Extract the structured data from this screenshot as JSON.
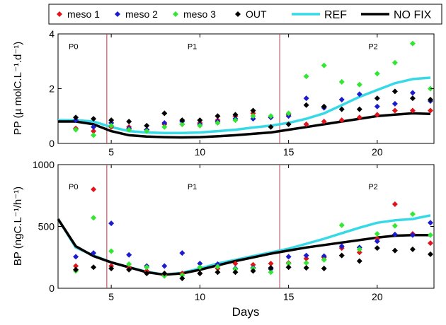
{
  "colors": {
    "meso1": "#e0141c",
    "meso2": "#1c1ccc",
    "meso3": "#33e633",
    "out": "#000000",
    "ref": "#36d9e6",
    "nofix": "#000000",
    "phase_line": "#b03a48"
  },
  "legend": [
    {
      "key": "meso1",
      "label": "meso 1",
      "kind": "diamond"
    },
    {
      "key": "meso2",
      "label": "meso 2",
      "kind": "diamond"
    },
    {
      "key": "meso3",
      "label": "meso 3",
      "kind": "diamond"
    },
    {
      "key": "out",
      "label": "OUT",
      "kind": "diamond"
    },
    {
      "key": "ref",
      "label": "REF",
      "kind": "line"
    },
    {
      "key": "nofix",
      "label": "NO FIX",
      "kind": "line"
    }
  ],
  "chart_data": [
    {
      "type": "scatter",
      "ylabel": "PP (µ molC.L⁻¹.d⁻¹)",
      "xlabel": "",
      "xlim": [
        2,
        23.2
      ],
      "ylim": [
        0,
        4
      ],
      "xticks": [
        5,
        10,
        15,
        20
      ],
      "yticks": [
        0,
        2,
        4
      ],
      "phase_boundaries": [
        4.75,
        14.5
      ],
      "phase_labels": [
        {
          "text": "P0",
          "x": 2.6,
          "y": 3.45
        },
        {
          "text": "P1",
          "x": 9.3,
          "y": 3.45
        },
        {
          "text": "P2",
          "x": 19.5,
          "y": 3.45
        }
      ],
      "series": [
        {
          "name": "meso 1",
          "key": "meso1",
          "kind": "points",
          "x": [
            3,
            4,
            5,
            6,
            7,
            8,
            9,
            10,
            11,
            12,
            13,
            14,
            15,
            16,
            17,
            18,
            19,
            20,
            21,
            22,
            23
          ],
          "y": [
            0.55,
            0.45,
            0.6,
            0.6,
            0.5,
            0.7,
            0.7,
            0.75,
            0.85,
            1.0,
            1.1,
            0.95,
            1.05,
            0.7,
            0.8,
            0.85,
            0.95,
            1.05,
            1.2,
            1.2,
            1.2
          ]
        },
        {
          "name": "meso 2",
          "key": "meso2",
          "kind": "points",
          "x": [
            3,
            4,
            5,
            6,
            7,
            8,
            9,
            10,
            11,
            12,
            13,
            14,
            15,
            16,
            17,
            18,
            19,
            20,
            21,
            22,
            23
          ],
          "y": [
            0.85,
            0.6,
            0.75,
            0.55,
            0.5,
            0.75,
            0.8,
            0.7,
            0.8,
            0.9,
            0.9,
            0.95,
            1.0,
            1.65,
            1.3,
            1.6,
            1.8,
            1.35,
            1.45,
            1.85,
            1.55
          ]
        },
        {
          "name": "meso 3",
          "key": "meso3",
          "kind": "points",
          "x": [
            3,
            4,
            5,
            6,
            7,
            8,
            9,
            10,
            11,
            12,
            13,
            14,
            15,
            16,
            17,
            18,
            19,
            20,
            21,
            22,
            23
          ],
          "y": [
            0.5,
            0.3,
            0.65,
            0.5,
            0.45,
            0.6,
            0.7,
            0.65,
            0.75,
            0.85,
            1.0,
            1.0,
            1.1,
            2.45,
            2.85,
            2.25,
            2.15,
            2.55,
            2.95,
            3.65,
            2.0
          ]
        },
        {
          "name": "OUT",
          "key": "out",
          "kind": "points",
          "x": [
            3,
            4,
            5,
            6,
            7,
            8,
            9,
            10,
            11,
            12,
            13,
            14,
            15,
            16,
            17,
            18,
            19,
            20,
            21,
            22,
            23
          ],
          "y": [
            0.95,
            0.9,
            0.85,
            0.8,
            0.65,
            1.1,
            0.85,
            0.85,
            1.0,
            1.05,
            1.2,
            0.6,
            0.7,
            1.4,
            1.35,
            1.25,
            1.25,
            1.65,
            1.9,
            1.65,
            1.6
          ]
        },
        {
          "name": "REF",
          "key": "ref",
          "kind": "line",
          "x": [
            2,
            3,
            4,
            5,
            6,
            7,
            8,
            9,
            10,
            11,
            12,
            13,
            14,
            15,
            16,
            17,
            18,
            19,
            20,
            21,
            22,
            23
          ],
          "y": [
            0.85,
            0.85,
            0.8,
            0.6,
            0.45,
            0.4,
            0.38,
            0.38,
            0.4,
            0.45,
            0.5,
            0.58,
            0.65,
            0.75,
            0.9,
            1.1,
            1.4,
            1.7,
            1.95,
            2.2,
            2.35,
            2.4
          ]
        },
        {
          "name": "NO FIX",
          "key": "nofix",
          "kind": "line",
          "x": [
            2,
            3,
            4,
            5,
            6,
            7,
            8,
            9,
            10,
            11,
            12,
            13,
            14,
            15,
            16,
            17,
            18,
            19,
            20,
            21,
            22,
            23
          ],
          "y": [
            0.8,
            0.8,
            0.7,
            0.45,
            0.3,
            0.25,
            0.23,
            0.22,
            0.23,
            0.26,
            0.3,
            0.35,
            0.4,
            0.5,
            0.6,
            0.7,
            0.8,
            0.9,
            1.0,
            1.05,
            1.1,
            1.08
          ]
        }
      ]
    },
    {
      "type": "scatter",
      "ylabel": "BP (ngC.L⁻¹/h⁻¹)",
      "xlabel": "Days",
      "xlim": [
        2,
        23.2
      ],
      "ylim": [
        0,
        1000
      ],
      "xticks": [
        5,
        10,
        15,
        20
      ],
      "yticks": [
        0,
        500,
        1000
      ],
      "phase_boundaries": [
        4.75,
        14.5
      ],
      "phase_labels": [
        {
          "text": "P0",
          "x": 2.6,
          "y": 800
        },
        {
          "text": "P1",
          "x": 9.3,
          "y": 800
        },
        {
          "text": "P2",
          "x": 19.5,
          "y": 800
        }
      ],
      "series": [
        {
          "name": "meso 1",
          "key": "meso1",
          "kind": "points",
          "x": [
            3,
            4,
            5,
            6,
            7,
            8,
            9,
            10,
            11,
            12,
            13,
            14,
            15,
            16,
            17,
            18,
            19,
            20,
            21,
            22,
            23
          ],
          "y": [
            180,
            800,
            180,
            165,
            140,
            110,
            120,
            120,
            160,
            200,
            190,
            200,
            205,
            240,
            250,
            325,
            290,
            400,
            680,
            440,
            365
          ]
        },
        {
          "name": "meso 2",
          "key": "meso2",
          "kind": "points",
          "x": [
            3,
            4,
            5,
            6,
            7,
            8,
            9,
            10,
            11,
            12,
            13,
            14,
            15,
            16,
            17,
            18,
            19,
            20,
            21,
            22,
            23
          ],
          "y": [
            255,
            285,
            525,
            270,
            180,
            180,
            285,
            200,
            195,
            160,
            165,
            155,
            255,
            265,
            260,
            340,
            330,
            380,
            435,
            430,
            530
          ]
        },
        {
          "name": "meso 3",
          "key": "meso3",
          "kind": "points",
          "x": [
            3,
            4,
            5,
            6,
            7,
            8,
            9,
            10,
            11,
            12,
            13,
            14,
            15,
            16,
            17,
            18,
            19,
            20,
            21,
            22,
            23
          ],
          "y": [
            140,
            570,
            300,
            195,
            170,
            100,
            105,
            170,
            175,
            155,
            160,
            130,
            200,
            205,
            230,
            510,
            315,
            440,
            505,
            600,
            430
          ]
        },
        {
          "name": "OUT",
          "key": "out",
          "kind": "points",
          "x": [
            3,
            4,
            5,
            6,
            7,
            8,
            9,
            10,
            11,
            12,
            13,
            14,
            15,
            16,
            17,
            18,
            19,
            20,
            21,
            22,
            23
          ],
          "y": [
            150,
            170,
            160,
            150,
            120,
            120,
            80,
            120,
            130,
            130,
            140,
            165,
            170,
            165,
            160,
            265,
            220,
            325,
            305,
            315,
            275
          ]
        },
        {
          "name": "REF",
          "key": "ref",
          "kind": "line",
          "x": [
            2,
            3,
            4,
            5,
            6,
            7,
            8,
            9,
            10,
            11,
            12,
            13,
            14,
            15,
            16,
            17,
            18,
            19,
            20,
            21,
            22,
            23
          ],
          "y": [
            560,
            330,
            265,
            210,
            170,
            135,
            110,
            125,
            160,
            200,
            230,
            260,
            290,
            320,
            360,
            400,
            445,
            490,
            530,
            550,
            560,
            590
          ]
        },
        {
          "name": "NO FIX",
          "key": "nofix",
          "kind": "line",
          "x": [
            2,
            3,
            4,
            5,
            6,
            7,
            8,
            9,
            10,
            11,
            12,
            13,
            14,
            15,
            16,
            17,
            18,
            19,
            20,
            21,
            22,
            23
          ],
          "y": [
            560,
            340,
            260,
            210,
            170,
            130,
            110,
            120,
            150,
            185,
            220,
            250,
            280,
            305,
            330,
            350,
            370,
            390,
            410,
            425,
            430,
            430
          ]
        }
      ]
    }
  ]
}
